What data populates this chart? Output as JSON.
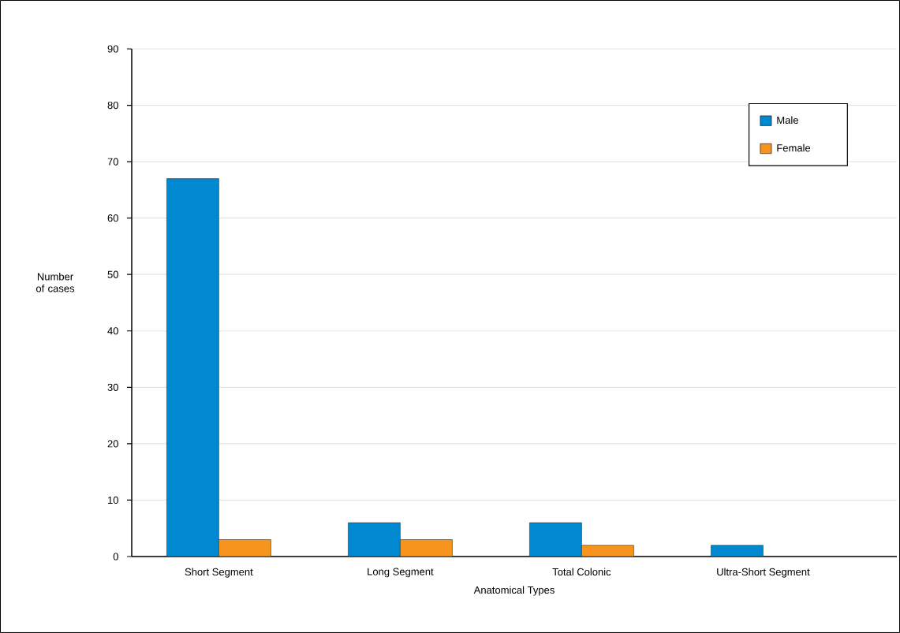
{
  "chart_data": {
    "type": "bar",
    "xlabel": "Anatomical Types",
    "ylabel": "Number of cases",
    "categories": [
      "Short Segment",
      "Long Segment",
      "Total Colonic",
      "Ultra-Short Segment"
    ],
    "series": [
      {
        "name": "Male",
        "color": "#0089d0",
        "values": [
          67,
          6,
          6,
          2
        ]
      },
      {
        "name": "Female",
        "color": "#f7941d",
        "values": [
          3,
          3,
          2,
          null
        ]
      }
    ],
    "ylim": [
      0,
      90
    ],
    "yticks": [
      0,
      10,
      20,
      30,
      40,
      50,
      60,
      70,
      80,
      90
    ],
    "grid": "y",
    "legend": "top right"
  }
}
